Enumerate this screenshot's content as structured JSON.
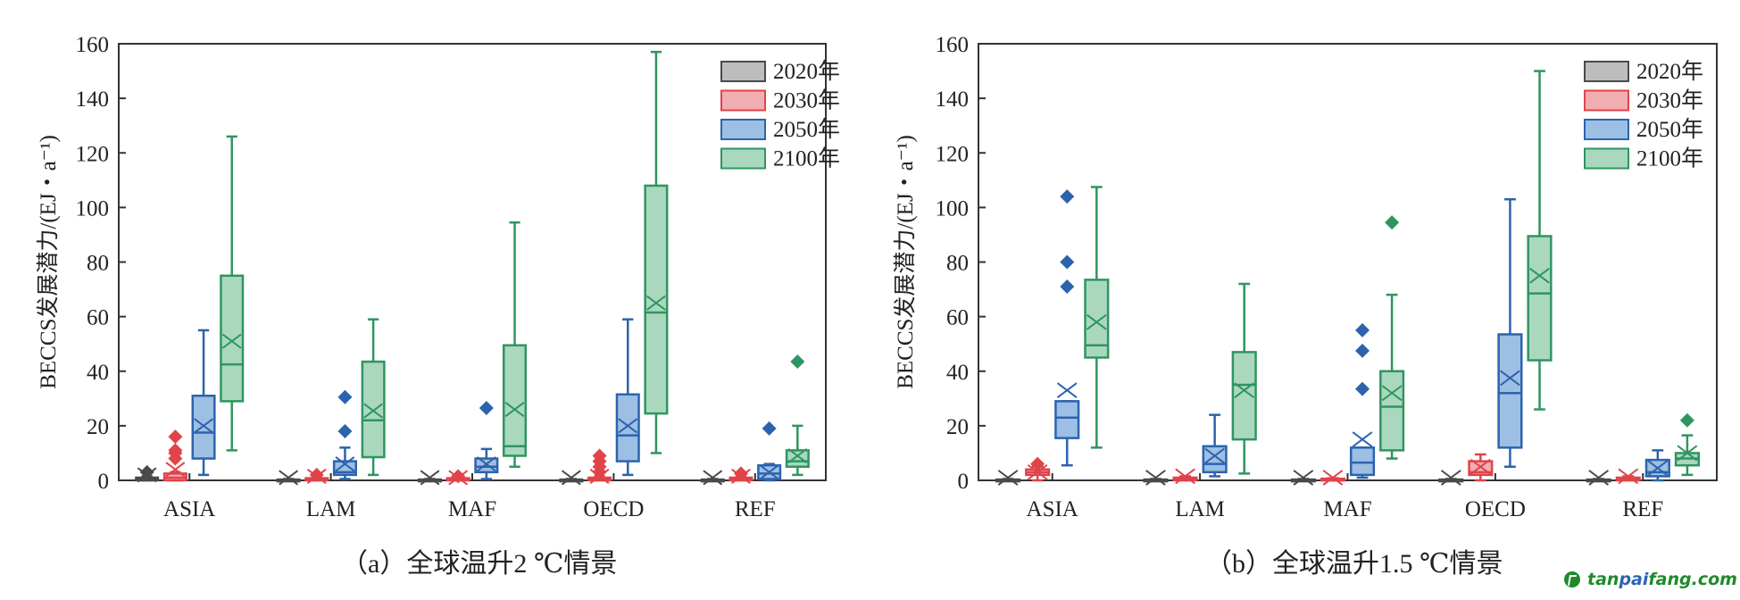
{
  "colors": {
    "2020年": {
      "stroke": "#4a4a4a",
      "fill": "#bdbdbd"
    },
    "2030年": {
      "stroke": "#e0434a",
      "fill": "#f0aeb1"
    },
    "2050年": {
      "stroke": "#2c63ad",
      "fill": "#9dbfe3"
    },
    "2100年": {
      "stroke": "#2f9560",
      "fill": "#a9d8bf"
    },
    "axis": "#333333"
  },
  "captions": {
    "a": "（a）全球温升2 ℃情景",
    "b": "（b）全球温升1.5 ℃情景"
  },
  "watermark": {
    "part1": "tan",
    "part2": "pai",
    "part3": "fang.com"
  },
  "chart_data": [
    {
      "type": "box",
      "id": "a",
      "title": "（a）全球温升2 ℃情景",
      "ylabel": "BECCS发展潜力/(EJ・a⁻¹)",
      "ylim": [
        0,
        160
      ],
      "yticks": [
        0,
        20,
        40,
        60,
        80,
        100,
        120,
        140,
        160
      ],
      "categories": [
        "ASIA",
        "LAM",
        "MAF",
        "OECD",
        "REF"
      ],
      "legend": [
        "2020年",
        "2030年",
        "2050年",
        "2100年"
      ],
      "legend_position": "top-right",
      "series": [
        {
          "name": "2020年",
          "boxes": [
            {
              "min": 0,
              "q1": 0,
              "median": 0.5,
              "q3": 1,
              "max": 1.5,
              "mean": 2,
              "outliers": [
                3
              ]
            },
            {
              "min": 0,
              "q1": 0,
              "median": 0,
              "q3": 0.3,
              "max": 0.5,
              "mean": 1,
              "outliers": []
            },
            {
              "min": 0,
              "q1": 0,
              "median": 0,
              "q3": 0.3,
              "max": 0.5,
              "mean": 1,
              "outliers": []
            },
            {
              "min": 0,
              "q1": 0,
              "median": 0,
              "q3": 0.3,
              "max": 0.5,
              "mean": 1,
              "outliers": []
            },
            {
              "min": 0,
              "q1": 0,
              "median": 0,
              "q3": 0.3,
              "max": 0.5,
              "mean": 1,
              "outliers": []
            }
          ]
        },
        {
          "name": "2030年",
          "boxes": [
            {
              "min": 0,
              "q1": 0,
              "median": 1,
              "q3": 2.5,
              "max": 3,
              "mean": 4,
              "outliers": [
                8,
                10,
                11,
                16
              ]
            },
            {
              "min": 0,
              "q1": 0,
              "median": 0.3,
              "q3": 0.8,
              "max": 1.2,
              "mean": 1.5,
              "outliers": [
                2
              ]
            },
            {
              "min": 0,
              "q1": 0,
              "median": 0.3,
              "q3": 0.8,
              "max": 1.2,
              "mean": 1,
              "outliers": [
                1.5
              ]
            },
            {
              "min": 0,
              "q1": 0,
              "median": 0.3,
              "q3": 1,
              "max": 1.5,
              "mean": 1.5,
              "outliers": [
                3,
                5,
                7,
                9
              ]
            },
            {
              "min": 0,
              "q1": 0,
              "median": 0.5,
              "q3": 1,
              "max": 1.5,
              "mean": 1.5,
              "outliers": [
                2.5
              ]
            }
          ]
        },
        {
          "name": "2050年",
          "boxes": [
            {
              "min": 2,
              "q1": 8,
              "median": 17.5,
              "q3": 31,
              "max": 55,
              "mean": 20,
              "outliers": []
            },
            {
              "min": 0.5,
              "q1": 2,
              "median": 3,
              "q3": 7,
              "max": 12,
              "mean": 6,
              "outliers": [
                18,
                30.5
              ]
            },
            {
              "min": 0.5,
              "q1": 3,
              "median": 5,
              "q3": 8,
              "max": 11.5,
              "mean": 6,
              "outliers": [
                26.5
              ]
            },
            {
              "min": 2,
              "q1": 7,
              "median": 16.5,
              "q3": 31.5,
              "max": 59,
              "mean": 20,
              "outliers": []
            },
            {
              "min": 0,
              "q1": 0.5,
              "median": 2.5,
              "q3": 5.5,
              "max": 6,
              "mean": 3,
              "outliers": [
                19
              ]
            }
          ]
        },
        {
          "name": "2100年",
          "boxes": [
            {
              "min": 11,
              "q1": 29,
              "median": 42.5,
              "q3": 75,
              "max": 126,
              "mean": 51,
              "outliers": []
            },
            {
              "min": 2,
              "q1": 8.5,
              "median": 22,
              "q3": 43.5,
              "max": 59,
              "mean": 25.5,
              "outliers": []
            },
            {
              "min": 5,
              "q1": 9,
              "median": 12.5,
              "q3": 49.5,
              "max": 94.5,
              "mean": 26,
              "outliers": []
            },
            {
              "min": 10,
              "q1": 24.5,
              "median": 61.5,
              "q3": 108,
              "max": 157,
              "mean": 65,
              "outliers": []
            },
            {
              "min": 2,
              "q1": 5,
              "median": 7,
              "q3": 11,
              "max": 20,
              "mean": 9,
              "outliers": [
                43.5
              ]
            }
          ]
        }
      ]
    },
    {
      "type": "box",
      "id": "b",
      "title": "（b）全球温升1.5 ℃情景",
      "ylabel": "BECCS发展潜力/(EJ・a⁻¹)",
      "ylim": [
        0,
        160
      ],
      "yticks": [
        0,
        20,
        40,
        60,
        80,
        100,
        120,
        140,
        160
      ],
      "categories": [
        "ASIA",
        "LAM",
        "MAF",
        "OECD",
        "REF"
      ],
      "legend": [
        "2020年",
        "2030年",
        "2050年",
        "2100年"
      ],
      "legend_position": "top-right",
      "series": [
        {
          "name": "2020年",
          "boxes": [
            {
              "min": 0,
              "q1": 0,
              "median": 0,
              "q3": 0.3,
              "max": 0.5,
              "mean": 1,
              "outliers": []
            },
            {
              "min": 0,
              "q1": 0,
              "median": 0,
              "q3": 0.3,
              "max": 0.5,
              "mean": 1,
              "outliers": []
            },
            {
              "min": 0,
              "q1": 0,
              "median": 0,
              "q3": 0.3,
              "max": 0.5,
              "mean": 1,
              "outliers": []
            },
            {
              "min": 0,
              "q1": 0,
              "median": 0,
              "q3": 0.3,
              "max": 0.5,
              "mean": 1,
              "outliers": []
            },
            {
              "min": 0,
              "q1": 0,
              "median": 0,
              "q3": 0.3,
              "max": 0.5,
              "mean": 1,
              "outliers": []
            }
          ]
        },
        {
          "name": "2030年",
          "boxes": [
            {
              "min": 0,
              "q1": 2,
              "median": 3,
              "q3": 4,
              "max": 5,
              "mean": 3,
              "outliers": [
                6
              ]
            },
            {
              "min": 0,
              "q1": 0,
              "median": 0.5,
              "q3": 1,
              "max": 1.5,
              "mean": 1.5,
              "outliers": []
            },
            {
              "min": 0,
              "q1": 0,
              "median": 0.2,
              "q3": 0.6,
              "max": 0.8,
              "mean": 1,
              "outliers": []
            },
            {
              "min": 0,
              "q1": 2,
              "median": 3,
              "q3": 7,
              "max": 9.5,
              "mean": 5,
              "outliers": []
            },
            {
              "min": 0,
              "q1": 0,
              "median": 0.5,
              "q3": 1,
              "max": 1.5,
              "mean": 1.5,
              "outliers": []
            }
          ]
        },
        {
          "name": "2050年",
          "boxes": [
            {
              "min": 5.5,
              "q1": 15.5,
              "median": 23,
              "q3": 29,
              "max": 29,
              "mean": 33,
              "outliers": [
                71,
                80,
                104
              ]
            },
            {
              "min": 1.5,
              "q1": 3,
              "median": 6,
              "q3": 12.5,
              "max": 24,
              "mean": 9,
              "outliers": []
            },
            {
              "min": 1,
              "q1": 2,
              "median": 6.5,
              "q3": 12,
              "max": 12,
              "mean": 15,
              "outliers": [
                33.5,
                47.5,
                55
              ]
            },
            {
              "min": 5,
              "q1": 12,
              "median": 32,
              "q3": 53.5,
              "max": 103,
              "mean": 37.5,
              "outliers": []
            },
            {
              "min": 0,
              "q1": 1.5,
              "median": 3,
              "q3": 7.5,
              "max": 11,
              "mean": 4.5,
              "outliers": []
            }
          ]
        },
        {
          "name": "2100年",
          "boxes": [
            {
              "min": 12,
              "q1": 45,
              "median": 49.5,
              "q3": 73.5,
              "max": 107.5,
              "mean": 58,
              "outliers": []
            },
            {
              "min": 2.5,
              "q1": 15,
              "median": 35,
              "q3": 47,
              "max": 72,
              "mean": 33,
              "outliers": []
            },
            {
              "min": 8,
              "q1": 11,
              "median": 27,
              "q3": 40,
              "max": 68,
              "mean": 32,
              "outliers": [
                94.5
              ]
            },
            {
              "min": 26,
              "q1": 44,
              "median": 68.5,
              "q3": 89.5,
              "max": 150,
              "mean": 75,
              "outliers": []
            },
            {
              "min": 2,
              "q1": 5.5,
              "median": 8,
              "q3": 10,
              "max": 16.5,
              "mean": 10,
              "outliers": [
                22
              ]
            }
          ]
        }
      ]
    }
  ]
}
